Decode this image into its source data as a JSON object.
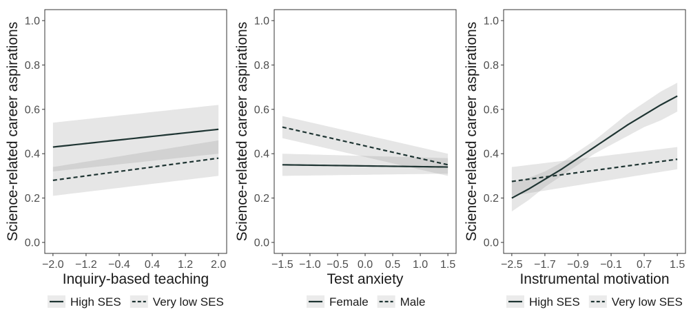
{
  "chart_data": [
    {
      "type": "line",
      "xlabel": "Inquiry-based teaching",
      "ylabel": "Science-related career aspirations",
      "xlim": [
        -2.0,
        2.0
      ],
      "ylim": [
        0.0,
        1.0
      ],
      "xticks": [
        "-2.0",
        "-1.2",
        "-0.4",
        "0.4",
        "1.2",
        "2.0"
      ],
      "yticks": [
        "0.0",
        "0.2",
        "0.4",
        "0.6",
        "0.8",
        "1.0"
      ],
      "grid": false,
      "legend": "bottom",
      "series": [
        {
          "name": "High SES",
          "style": "solid",
          "x": [
            -2.0,
            2.0
          ],
          "y": [
            0.43,
            0.51
          ],
          "lower": [
            0.32,
            0.4
          ],
          "upper": [
            0.54,
            0.62
          ]
        },
        {
          "name": "Very low SES",
          "style": "dashed",
          "x": [
            -2.0,
            2.0
          ],
          "y": [
            0.28,
            0.38
          ],
          "lower": [
            0.21,
            0.3
          ],
          "upper": [
            0.34,
            0.46
          ]
        }
      ]
    },
    {
      "type": "line",
      "xlabel": "Test anxiety",
      "ylabel": "Science-related career aspirations",
      "xlim": [
        -1.5,
        1.5
      ],
      "ylim": [
        0.0,
        1.0
      ],
      "xticks": [
        "-1.5",
        "-1.0",
        "-0.5",
        "0.0",
        "0.5",
        "1.0",
        "1.5"
      ],
      "yticks": [
        "0.0",
        "0.2",
        "0.4",
        "0.6",
        "0.8",
        "1.0"
      ],
      "grid": false,
      "legend": "bottom",
      "series": [
        {
          "name": "Female",
          "style": "solid",
          "x": [
            -1.5,
            1.5
          ],
          "y": [
            0.35,
            0.34
          ],
          "lower": [
            0.3,
            0.31
          ],
          "upper": [
            0.4,
            0.38
          ]
        },
        {
          "name": "Male",
          "style": "dashed",
          "x": [
            -1.5,
            1.5
          ],
          "y": [
            0.52,
            0.35
          ],
          "lower": [
            0.47,
            0.3
          ],
          "upper": [
            0.57,
            0.4
          ]
        }
      ]
    },
    {
      "type": "line",
      "xlabel": "Instrumental motivation",
      "ylabel": "Science-related career aspirations",
      "xlim": [
        -2.5,
        1.5
      ],
      "ylim": [
        0.0,
        1.0
      ],
      "xticks": [
        "-2.5",
        "-1.7",
        "-0.9",
        "-0.1",
        "0.7",
        "1.5"
      ],
      "yticks": [
        "0.0",
        "0.2",
        "0.4",
        "0.6",
        "0.8",
        "1.0"
      ],
      "grid": false,
      "legend": "bottom",
      "series": [
        {
          "name": "High SES",
          "style": "solid",
          "x": [
            -2.5,
            -2.1,
            -1.7,
            -1.3,
            -0.9,
            -0.5,
            -0.1,
            0.3,
            0.7,
            1.1,
            1.5
          ],
          "y": [
            0.2,
            0.24,
            0.285,
            0.33,
            0.38,
            0.43,
            0.48,
            0.53,
            0.575,
            0.62,
            0.66
          ],
          "lower": [
            0.14,
            0.19,
            0.25,
            0.3,
            0.35,
            0.4,
            0.44,
            0.48,
            0.52,
            0.55,
            0.59
          ],
          "upper": [
            0.27,
            0.29,
            0.32,
            0.36,
            0.41,
            0.46,
            0.52,
            0.58,
            0.63,
            0.68,
            0.72
          ]
        },
        {
          "name": "Very low SES",
          "style": "dashed",
          "x": [
            -2.5,
            1.5
          ],
          "y": [
            0.275,
            0.375
          ],
          "lower": [
            0.21,
            0.33
          ],
          "upper": [
            0.34,
            0.43
          ]
        }
      ]
    }
  ]
}
